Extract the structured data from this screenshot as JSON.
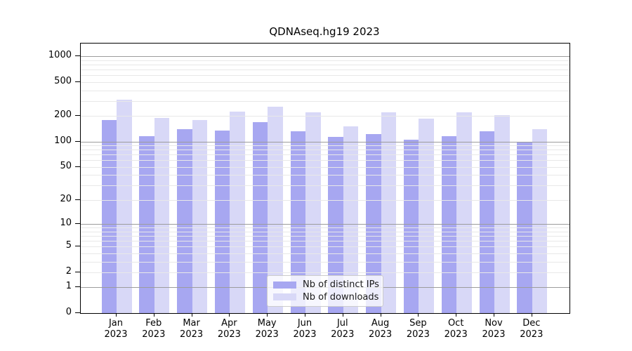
{
  "chart_data": {
    "type": "bar",
    "title": "QDNAseq.hg19 2023",
    "categories": [
      "Jan",
      "Feb",
      "Mar",
      "Apr",
      "May",
      "Jun",
      "Jul",
      "Aug",
      "Sep",
      "Oct",
      "Nov",
      "Dec"
    ],
    "year_label": "2023",
    "series": [
      {
        "name": "Nb of distinct IPs",
        "color": "#a7a7f1",
        "values": [
          178,
          116,
          140,
          136,
          168,
          132,
          114,
          123,
          106,
          116,
          132,
          100
        ]
      },
      {
        "name": "Nb of downloads",
        "color": "#d8d8f7",
        "values": [
          310,
          190,
          178,
          224,
          256,
          219,
          152,
          219,
          188,
          219,
          205,
          140
        ]
      }
    ],
    "yticks": [
      0,
      1,
      2,
      5,
      10,
      20,
      50,
      100,
      200,
      500,
      1000
    ],
    "y_scale": "log10(1+y)",
    "ylim": [
      0,
      1400
    ],
    "grid": true,
    "grid_minor_steps": [
      2,
      3,
      4,
      5,
      6,
      7,
      8,
      9
    ],
    "legend_position": "bottom-center",
    "axis_color": "#000000",
    "grid_major_color": "#9c9c9c",
    "grid_minor_color": "#e8e8e8"
  }
}
